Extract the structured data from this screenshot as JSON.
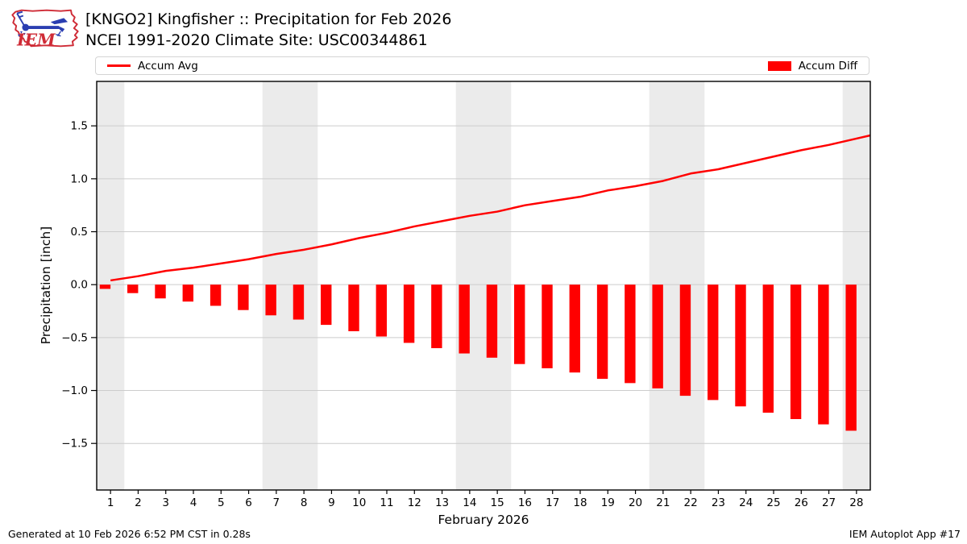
{
  "header": {
    "title_line1": "[KNGO2] Kingfisher :: Precipitation for Feb 2026",
    "title_line2": "NCEI 1991-2020 Climate Site: USC00344861",
    "logo_text": "IEM"
  },
  "legend": {
    "avg_label": "Accum Avg",
    "diff_label": "Accum Diff"
  },
  "footer": {
    "left": "Generated at 10 Feb 2026 6:52 PM CST in 0.28s",
    "right": "IEM Autoplot App #17"
  },
  "colors": {
    "series_red": "#ff0000",
    "weekend_band": "#ebebeb",
    "gridline": "#cccccc",
    "spine": "#000000",
    "logo_red": "#cf2b36",
    "logo_blue": "#2a3eb1"
  },
  "chart_data": {
    "type": "bar",
    "title": "[KNGO2] Kingfisher :: Precipitation for Feb 2026",
    "subtitle": "NCEI 1991-2020 Climate Site: USC00344861",
    "xlabel": "February 2026",
    "ylabel": "Precipitation [inch]",
    "xlim": [
      0.5,
      28.5
    ],
    "ylim": [
      -1.94,
      1.92
    ],
    "grid": "horizontal-only",
    "legend_position": "outside-top",
    "x_ticks": [
      1,
      2,
      3,
      4,
      5,
      6,
      7,
      8,
      9,
      10,
      11,
      12,
      13,
      14,
      15,
      16,
      17,
      18,
      19,
      20,
      21,
      22,
      23,
      24,
      25,
      26,
      27,
      28
    ],
    "y_tick_values": [
      1.5,
      1.0,
      0.5,
      0.0,
      -0.5,
      -1.0,
      -1.5
    ],
    "y_tick_labels": [
      "1.5",
      "1.0",
      "0.5",
      "0.0",
      "−0.5",
      "−1.0",
      "−1.5"
    ],
    "weekend_shaded_days": [
      1,
      7,
      8,
      14,
      15,
      21,
      22,
      28
    ],
    "series": [
      {
        "name": "Accum Avg",
        "type": "line",
        "x": [
          1,
          2,
          3,
          4,
          5,
          6,
          7,
          8,
          9,
          10,
          11,
          12,
          13,
          14,
          15,
          16,
          17,
          18,
          19,
          20,
          21,
          22,
          23,
          24,
          25,
          26,
          27,
          28,
          28.5
        ],
        "y": [
          0.04,
          0.08,
          0.13,
          0.16,
          0.2,
          0.24,
          0.29,
          0.33,
          0.38,
          0.44,
          0.49,
          0.55,
          0.6,
          0.65,
          0.69,
          0.75,
          0.79,
          0.83,
          0.89,
          0.93,
          0.98,
          1.05,
          1.09,
          1.15,
          1.21,
          1.27,
          1.32,
          1.38,
          1.41
        ]
      },
      {
        "name": "Accum Diff",
        "type": "bar",
        "x": [
          1,
          2,
          3,
          4,
          5,
          6,
          7,
          8,
          9,
          10,
          11,
          12,
          13,
          14,
          15,
          16,
          17,
          18,
          19,
          20,
          21,
          22,
          23,
          24,
          25,
          26,
          27,
          28
        ],
        "y": [
          -0.04,
          -0.08,
          -0.13,
          -0.16,
          -0.2,
          -0.24,
          -0.29,
          -0.33,
          -0.38,
          -0.44,
          -0.49,
          -0.55,
          -0.6,
          -0.65,
          -0.69,
          -0.75,
          -0.79,
          -0.83,
          -0.89,
          -0.93,
          -0.98,
          -1.05,
          -1.09,
          -1.15,
          -1.21,
          -1.27,
          -1.32,
          -1.38
        ]
      }
    ]
  }
}
